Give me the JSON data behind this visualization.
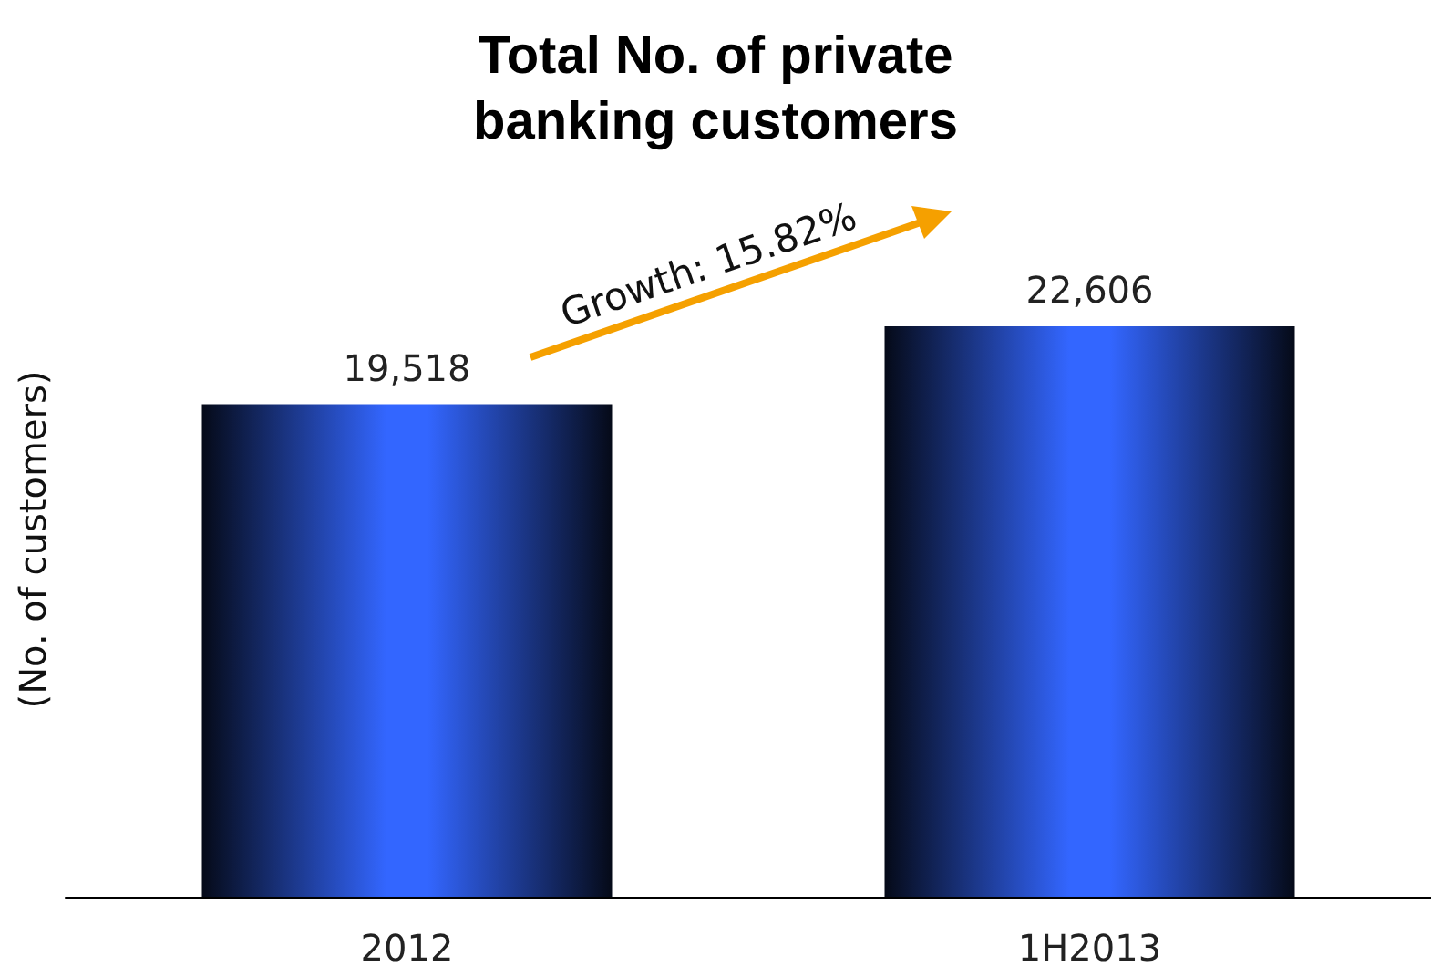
{
  "chart_data": {
    "type": "bar",
    "title": "Total No. of private\nbanking customers",
    "ylabel": "(No. of customers)",
    "categories": [
      "2012",
      "1H2013"
    ],
    "series": [
      {
        "color": "#3366ff",
        "values": [
          19518,
          22606
        ],
        "value_labels": [
          "19,518",
          "22,606"
        ]
      }
    ],
    "annotations": [
      "Growth: 15.82%"
    ],
    "grid": false
  }
}
